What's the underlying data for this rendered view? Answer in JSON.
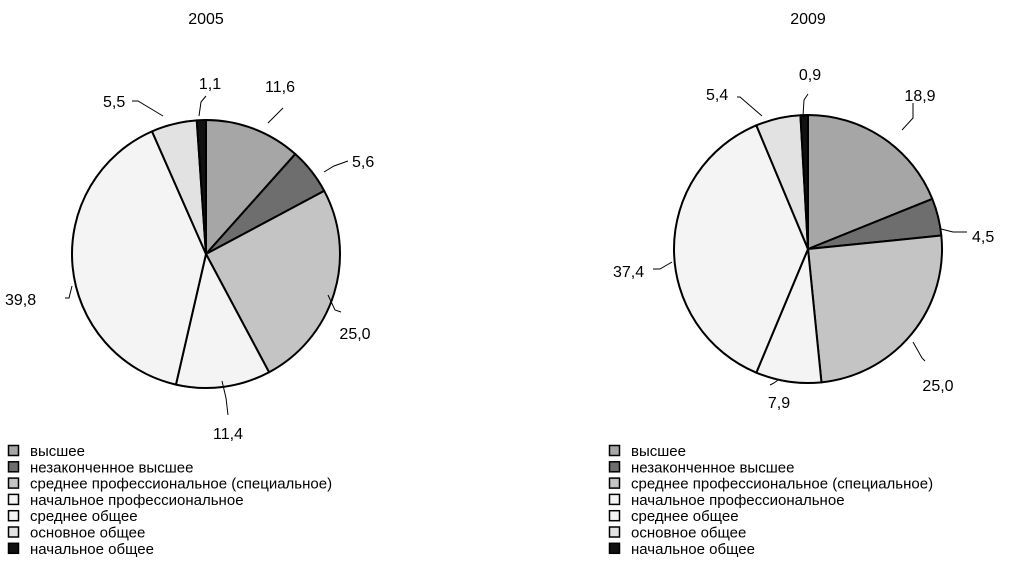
{
  "chart_data": [
    {
      "type": "pie",
      "title": "2005",
      "categories": [
        "высшее",
        "незаконченное высшее",
        "среднее профессиональное (специальное)",
        "начальное профессиональное",
        "среднее общее",
        "основное общее",
        "начальное общее"
      ],
      "values": [
        11.6,
        5.6,
        25.0,
        11.4,
        39.8,
        5.5,
        1.1
      ],
      "labels": [
        "11,6",
        "5,6",
        "25,0",
        "11,4",
        "39,8",
        "5,5",
        "1,1"
      ],
      "colors": [
        "#a6a6a6",
        "#6e6e6e",
        "#c4c4c4",
        "#f4f4f4",
        "#f4f4f4",
        "#e2e2e2",
        "#111111"
      ],
      "legend_position": "bottom-left"
    },
    {
      "type": "pie",
      "title": "2009",
      "categories": [
        "высшее",
        "незаконченное высшее",
        "среднее профессиональное (специальное)",
        "начальное профессиональное",
        "среднее общее",
        "основное общее",
        "начальное общее"
      ],
      "values": [
        18.9,
        4.5,
        25.0,
        7.9,
        37.4,
        5.4,
        0.9
      ],
      "labels": [
        "18,9",
        "4,5",
        "25,0",
        "7,9",
        "37,4",
        "5,4",
        "0,9"
      ],
      "colors": [
        "#a6a6a6",
        "#6e6e6e",
        "#c4c4c4",
        "#f4f4f4",
        "#f4f4f4",
        "#e2e2e2",
        "#111111"
      ],
      "legend_position": "bottom-left"
    }
  ]
}
